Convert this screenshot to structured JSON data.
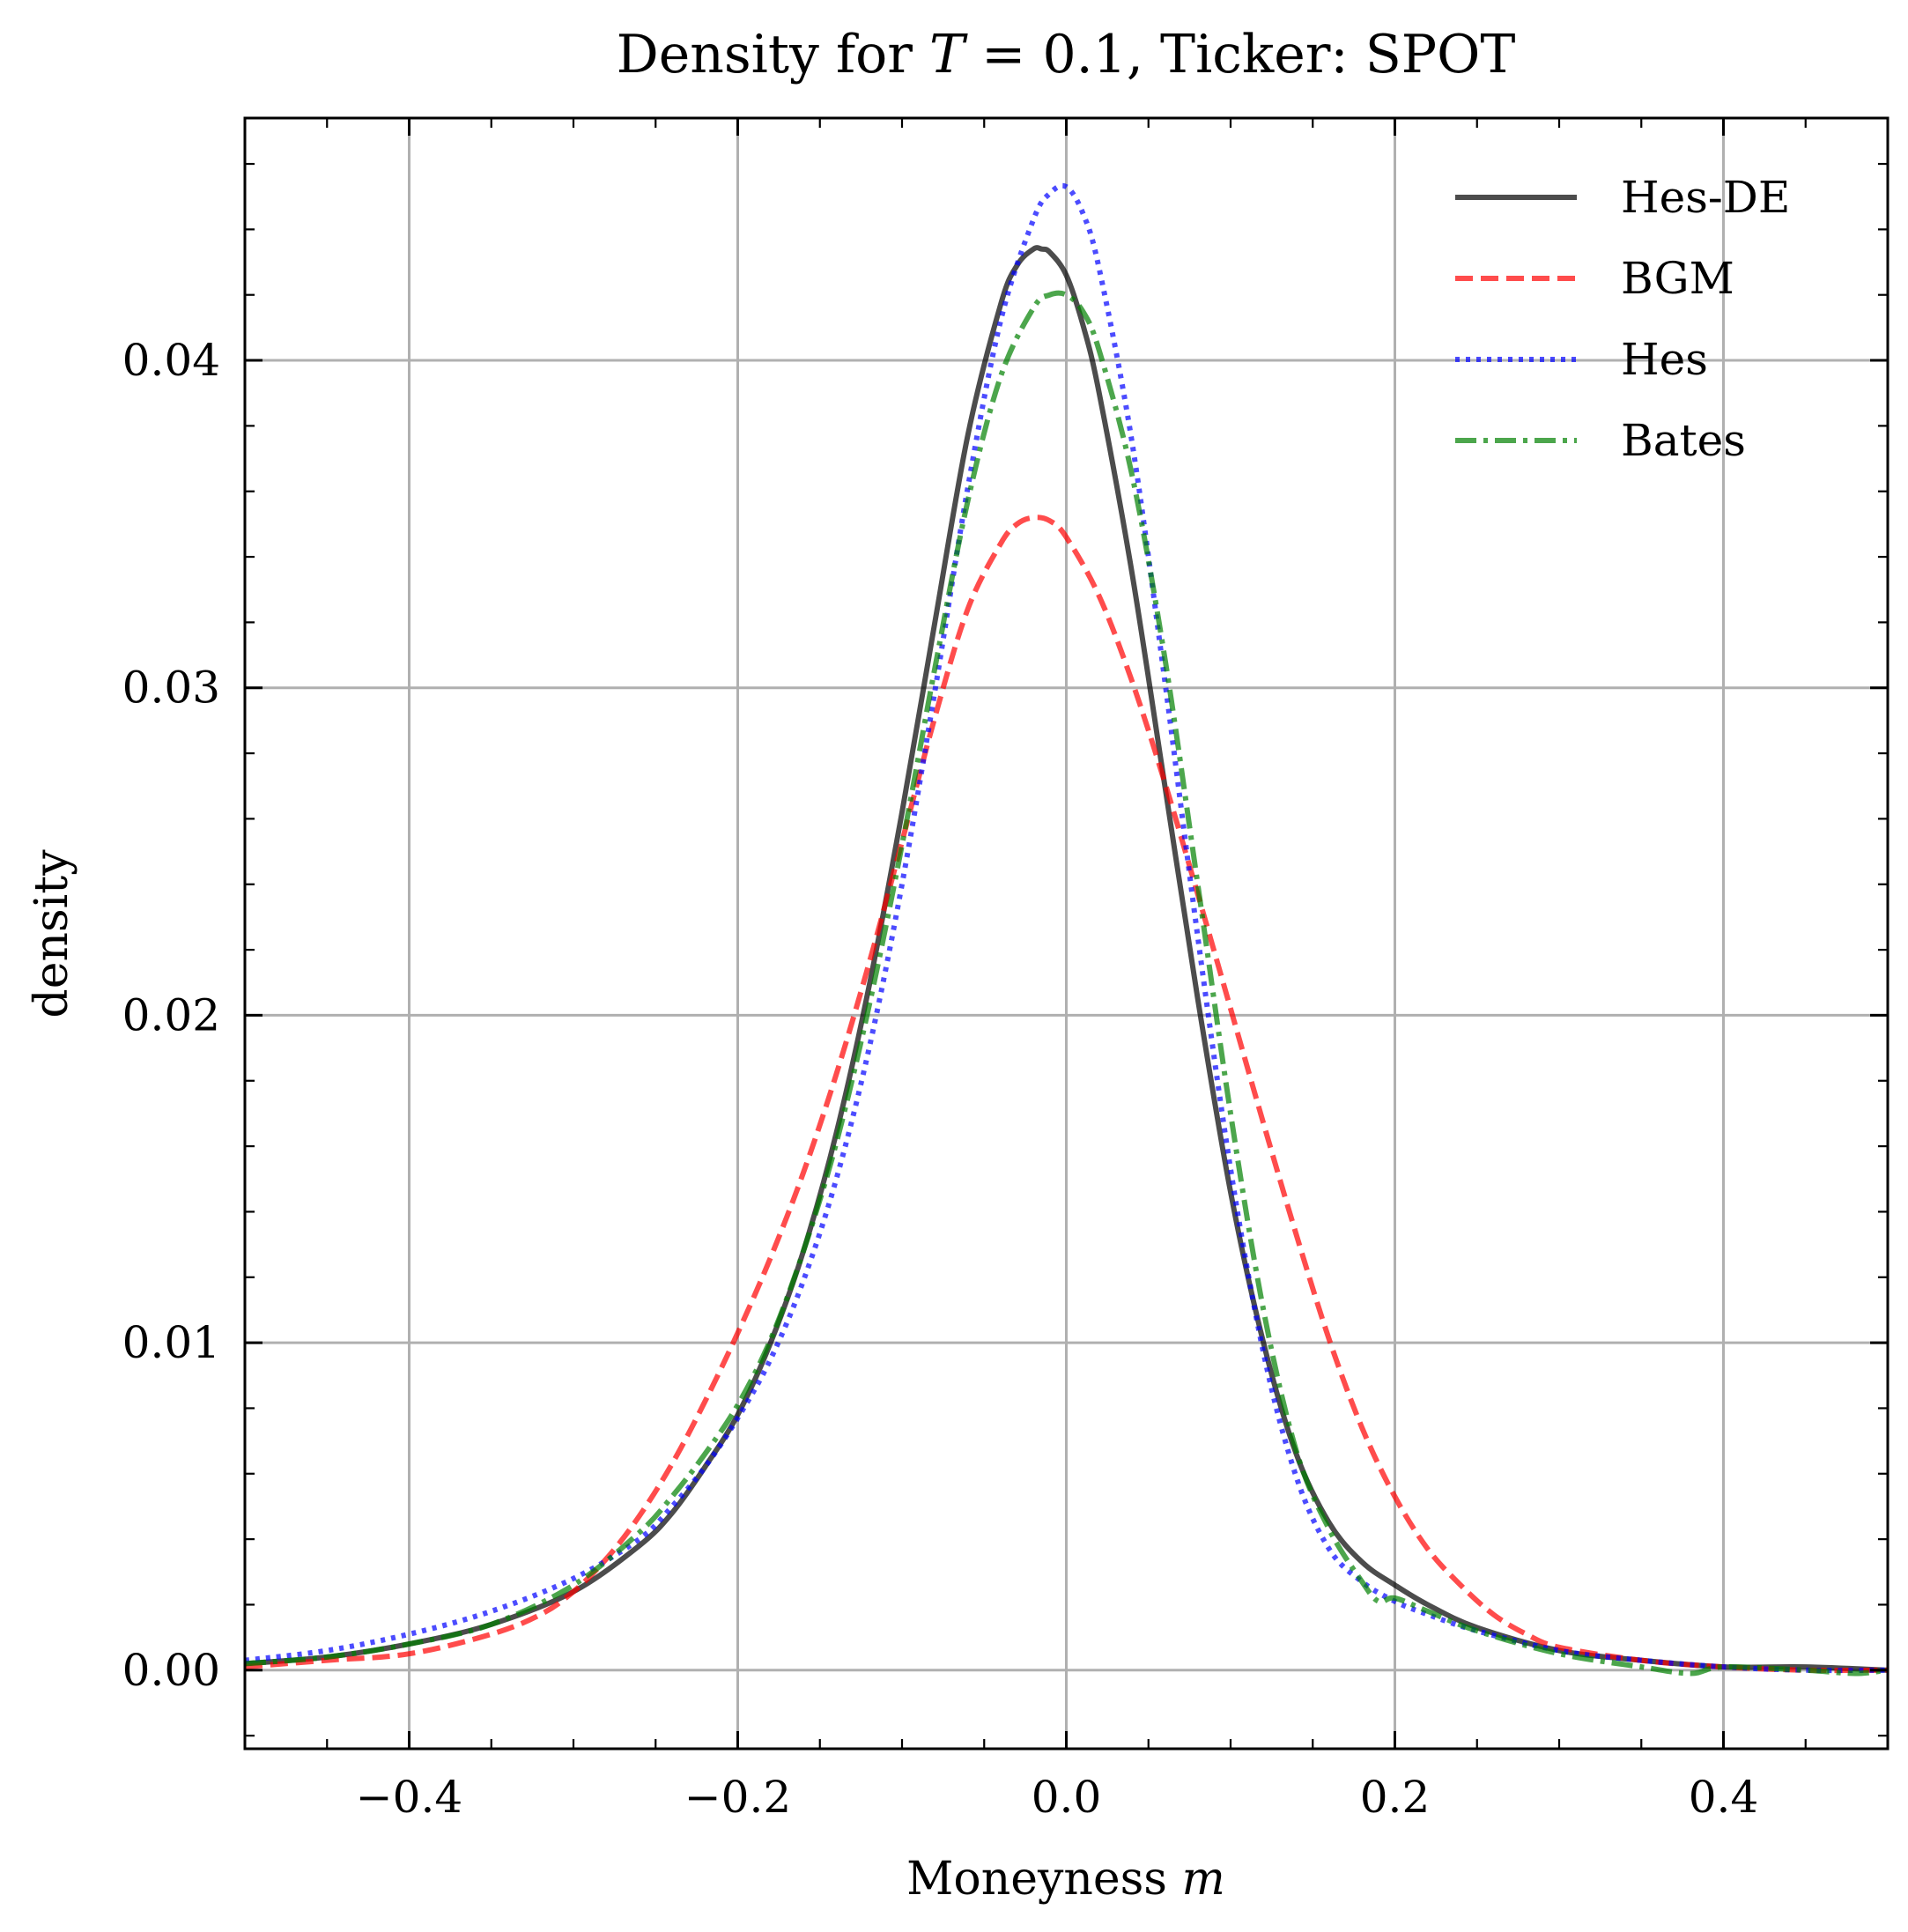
{
  "chart_data": {
    "type": "line",
    "title": "Density for T = 0.1, Ticker: SPOT",
    "title_parts": {
      "prefix": "Density for ",
      "var": "T",
      "suffix": " = 0.1, Ticker: SPOT"
    },
    "xlabel": "Moneyness m",
    "xlabel_parts": {
      "text": "Moneyness ",
      "var": "m"
    },
    "ylabel": "density",
    "xlim": [
      -0.5,
      0.5
    ],
    "ylim": [
      -0.0024,
      0.0474
    ],
    "xticks": [
      -0.4,
      -0.2,
      0.0,
      0.2,
      0.4
    ],
    "xtick_labels": [
      "−0.4",
      "−0.2",
      "0.0",
      "0.2",
      "0.4"
    ],
    "yticks": [
      0.0,
      0.01,
      0.02,
      0.03,
      0.04
    ],
    "ytick_labels": [
      "0.00",
      "0.01",
      "0.02",
      "0.03",
      "0.04"
    ],
    "grid": true,
    "legend_position": "top-right",
    "series": [
      {
        "name": "Hes-DE",
        "color": "#000000",
        "opacity": 0.7,
        "dash": "solid",
        "x": [
          -0.5,
          -0.45,
          -0.4,
          -0.35,
          -0.3,
          -0.26,
          -0.24,
          -0.22,
          -0.2,
          -0.18,
          -0.16,
          -0.14,
          -0.12,
          -0.1,
          -0.08,
          -0.06,
          -0.04,
          -0.03,
          -0.02,
          -0.015,
          -0.01,
          0.0,
          0.01,
          0.02,
          0.04,
          0.06,
          0.08,
          0.1,
          0.12,
          0.14,
          0.16,
          0.18,
          0.2,
          0.22,
          0.25,
          0.3,
          0.35,
          0.4,
          0.45,
          0.5
        ],
        "y": [
          0.0002,
          0.0004,
          0.0008,
          0.0014,
          0.0024,
          0.0038,
          0.0048,
          0.0062,
          0.0078,
          0.01,
          0.0128,
          0.0164,
          0.0209,
          0.0262,
          0.032,
          0.0377,
          0.0417,
          0.0429,
          0.0434,
          0.0434,
          0.0433,
          0.0426,
          0.0411,
          0.039,
          0.0335,
          0.027,
          0.0205,
          0.0146,
          0.01,
          0.0066,
          0.0045,
          0.0033,
          0.0026,
          0.002,
          0.0013,
          0.0006,
          0.0003,
          0.0001,
          0.0001,
          0.0
        ]
      },
      {
        "name": "BGM",
        "color": "#ff0000",
        "opacity": 0.7,
        "dash": "dashed",
        "x": [
          -0.5,
          -0.45,
          -0.4,
          -0.35,
          -0.32,
          -0.3,
          -0.28,
          -0.26,
          -0.24,
          -0.22,
          -0.2,
          -0.18,
          -0.16,
          -0.14,
          -0.12,
          -0.1,
          -0.08,
          -0.06,
          -0.04,
          -0.03,
          -0.02,
          -0.01,
          0.0,
          0.02,
          0.04,
          0.06,
          0.08,
          0.1,
          0.12,
          0.14,
          0.16,
          0.18,
          0.2,
          0.22,
          0.24,
          0.26,
          0.28,
          0.3,
          0.35,
          0.4,
          0.45,
          0.5
        ],
        "y": [
          0.0001,
          0.0003,
          0.0005,
          0.0011,
          0.0017,
          0.0024,
          0.0034,
          0.0047,
          0.0063,
          0.0082,
          0.0103,
          0.0126,
          0.0152,
          0.0182,
          0.0216,
          0.0253,
          0.0291,
          0.0324,
          0.0344,
          0.035,
          0.0352,
          0.0351,
          0.0346,
          0.0328,
          0.0302,
          0.0271,
          0.0237,
          0.0202,
          0.0167,
          0.0133,
          0.0101,
          0.0074,
          0.0053,
          0.0037,
          0.0026,
          0.0017,
          0.0011,
          0.0007,
          0.0003,
          0.0001,
          0.0,
          0.0
        ]
      },
      {
        "name": "Hes",
        "color": "#0000ff",
        "opacity": 0.7,
        "dash": "dotted",
        "x": [
          -0.5,
          -0.45,
          -0.4,
          -0.35,
          -0.3,
          -0.26,
          -0.24,
          -0.22,
          -0.2,
          -0.18,
          -0.16,
          -0.14,
          -0.12,
          -0.1,
          -0.08,
          -0.06,
          -0.04,
          -0.02,
          -0.01,
          0.0,
          0.01,
          0.02,
          0.04,
          0.06,
          0.08,
          0.1,
          0.12,
          0.14,
          0.16,
          0.18,
          0.2,
          0.22,
          0.25,
          0.3,
          0.35,
          0.4,
          0.45,
          0.5
        ],
        "y": [
          0.0003,
          0.0006,
          0.0011,
          0.0018,
          0.0028,
          0.004,
          0.005,
          0.0062,
          0.0077,
          0.0095,
          0.0119,
          0.015,
          0.019,
          0.024,
          0.0299,
          0.0361,
          0.0412,
          0.0443,
          0.0451,
          0.0453,
          0.0445,
          0.0428,
          0.0375,
          0.0302,
          0.0224,
          0.0153,
          0.0097,
          0.0059,
          0.0037,
          0.0027,
          0.0021,
          0.0017,
          0.0012,
          0.0006,
          0.0003,
          0.0001,
          0.0,
          0.0
        ]
      },
      {
        "name": "Bates",
        "color": "#008000",
        "opacity": 0.7,
        "dash": "dashdot",
        "x": [
          -0.5,
          -0.45,
          -0.4,
          -0.35,
          -0.3,
          -0.26,
          -0.24,
          -0.22,
          -0.2,
          -0.18,
          -0.16,
          -0.14,
          -0.12,
          -0.1,
          -0.08,
          -0.06,
          -0.04,
          -0.02,
          -0.01,
          0.0,
          0.01,
          0.02,
          0.04,
          0.06,
          0.08,
          0.1,
          0.12,
          0.14,
          0.16,
          0.18,
          0.19,
          0.2,
          0.22,
          0.25,
          0.3,
          0.35,
          0.38,
          0.4,
          0.45,
          0.48,
          0.5
        ],
        "y": [
          0.0002,
          0.0004,
          0.0008,
          0.0014,
          0.0026,
          0.0042,
          0.0053,
          0.0066,
          0.0081,
          0.0101,
          0.0128,
          0.0161,
          0.0203,
          0.0252,
          0.0306,
          0.0357,
          0.0395,
          0.0416,
          0.042,
          0.042,
          0.0415,
          0.0403,
          0.0365,
          0.0309,
          0.024,
          0.017,
          0.011,
          0.0067,
          0.0043,
          0.0027,
          0.0021,
          0.0022,
          0.0018,
          0.0012,
          0.0005,
          0.0001,
          -0.0001,
          0.0001,
          0.0,
          -0.0001,
          0.0
        ]
      }
    ]
  }
}
